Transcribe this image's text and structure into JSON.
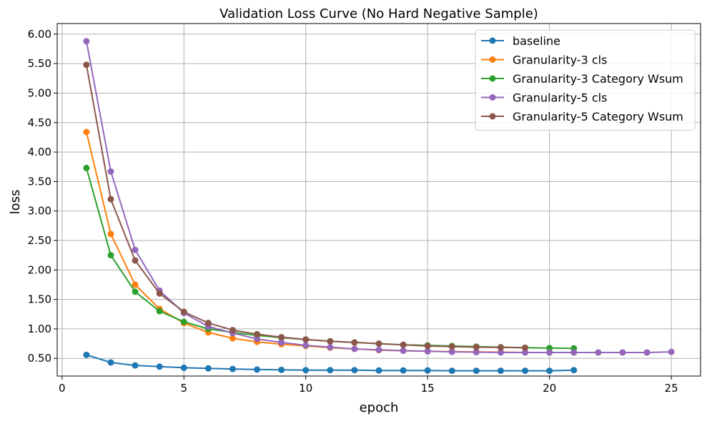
{
  "chart_data": {
    "type": "line",
    "title": "Validation Loss Curve (No Hard Negative Sample)",
    "xlabel": "epoch",
    "ylabel": "loss",
    "xlim": [
      -0.2,
      26.2
    ],
    "ylim": [
      0.2,
      6.18
    ],
    "xticks": [
      0,
      5,
      10,
      15,
      20,
      25
    ],
    "xtick_labels": [
      "0",
      "5",
      "10",
      "15",
      "20",
      "25"
    ],
    "yticks": [
      0.5,
      1.0,
      1.5,
      2.0,
      2.5,
      3.0,
      3.5,
      4.0,
      4.5,
      5.0,
      5.5,
      6.0
    ],
    "ytick_labels": [
      "0.50",
      "1.00",
      "1.50",
      "2.00",
      "2.50",
      "3.00",
      "3.50",
      "4.00",
      "4.50",
      "5.00",
      "5.50",
      "6.00"
    ],
    "grid": true,
    "legend_position": "top-right",
    "series": [
      {
        "name": "baseline",
        "color": "#1f77b4",
        "x": [
          1,
          2,
          3,
          4,
          5,
          6,
          7,
          8,
          9,
          10,
          11,
          12,
          13,
          14,
          15,
          16,
          17,
          18,
          19,
          20,
          21
        ],
        "y": [
          0.56,
          0.43,
          0.38,
          0.36,
          0.34,
          0.33,
          0.32,
          0.31,
          0.305,
          0.3,
          0.3,
          0.3,
          0.295,
          0.295,
          0.295,
          0.29,
          0.29,
          0.29,
          0.29,
          0.29,
          0.3
        ]
      },
      {
        "name": "Granularity-3 cls",
        "color": "#ff7f0e",
        "x": [
          1,
          2,
          3,
          4,
          5,
          6,
          7,
          8,
          9,
          10,
          11,
          12,
          13,
          14,
          15,
          16,
          17,
          18,
          19,
          20,
          21,
          22,
          23,
          24
        ],
        "y": [
          4.34,
          2.61,
          1.75,
          1.34,
          1.1,
          0.94,
          0.84,
          0.78,
          0.74,
          0.71,
          0.68,
          0.66,
          0.64,
          0.63,
          0.62,
          0.615,
          0.61,
          0.605,
          0.6,
          0.6,
          0.6,
          0.6,
          0.6,
          0.6
        ]
      },
      {
        "name": "Granularity-3 Category Wsum",
        "color": "#2ca02c",
        "x": [
          1,
          2,
          3,
          4,
          5,
          6,
          7,
          8,
          9,
          10,
          11,
          12,
          13,
          14,
          15,
          16,
          17,
          18,
          19,
          20,
          21
        ],
        "y": [
          3.73,
          2.25,
          1.63,
          1.3,
          1.12,
          1.0,
          0.94,
          0.89,
          0.85,
          0.82,
          0.79,
          0.77,
          0.75,
          0.73,
          0.72,
          0.71,
          0.7,
          0.69,
          0.68,
          0.675,
          0.67
        ]
      },
      {
        "name": "Granularity-5 cls",
        "color": "#9467bd",
        "x": [
          1,
          2,
          3,
          4,
          5,
          6,
          7,
          8,
          9,
          10,
          11,
          12,
          13,
          14,
          15,
          16,
          17,
          18,
          19,
          20,
          21,
          22,
          23,
          24,
          25
        ],
        "y": [
          5.88,
          3.67,
          2.34,
          1.65,
          1.27,
          1.04,
          0.93,
          0.83,
          0.77,
          0.72,
          0.69,
          0.66,
          0.645,
          0.63,
          0.62,
          0.61,
          0.605,
          0.6,
          0.6,
          0.6,
          0.6,
          0.6,
          0.6,
          0.6,
          0.61
        ]
      },
      {
        "name": "Granularity-5 Category Wsum",
        "color": "#8c564b",
        "x": [
          1,
          2,
          3,
          4,
          5,
          6,
          7,
          8,
          9,
          10,
          11,
          12,
          13,
          14,
          15,
          16,
          17,
          18,
          19
        ],
        "y": [
          5.48,
          3.2,
          2.16,
          1.6,
          1.29,
          1.1,
          0.98,
          0.91,
          0.86,
          0.82,
          0.79,
          0.77,
          0.75,
          0.73,
          0.71,
          0.7,
          0.69,
          0.685,
          0.68
        ]
      }
    ]
  }
}
